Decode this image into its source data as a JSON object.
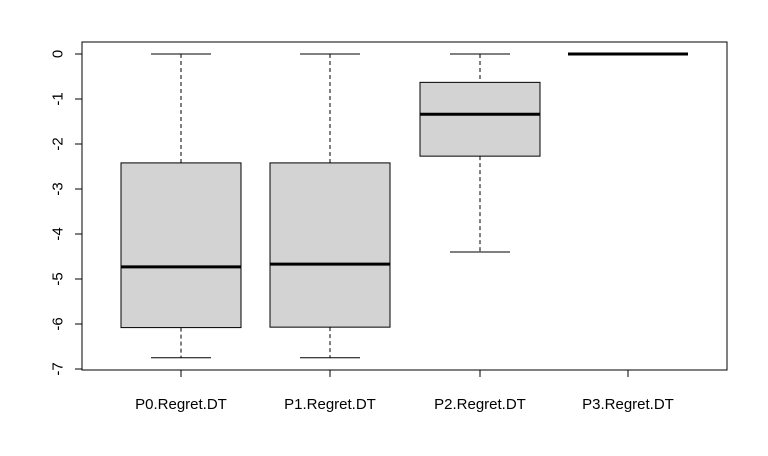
{
  "chart_data": {
    "type": "boxplot",
    "title": "",
    "xlabel": "",
    "ylabel": "",
    "ylim": [
      -7,
      0
    ],
    "yticks": [
      0,
      -1,
      -2,
      -3,
      -4,
      -5,
      -6,
      -7
    ],
    "grid": false,
    "box_fill": "#d3d3d3",
    "line_color": "#000000",
    "categories": [
      "P0.Regret.DT",
      "P1.Regret.DT",
      "P2.Regret.DT",
      "P3.Regret.DT"
    ],
    "boxes": [
      {
        "min": -6.75,
        "q1": -6.08,
        "median": -4.73,
        "q3": -2.42,
        "max": 0
      },
      {
        "min": -6.75,
        "q1": -6.07,
        "median": -4.67,
        "q3": -2.42,
        "max": 0
      },
      {
        "min": -4.4,
        "q1": -2.27,
        "median": -1.34,
        "q3": -0.63,
        "max": 0
      },
      {
        "min": 0,
        "q1": 0,
        "median": 0,
        "q3": 0,
        "max": 0
      }
    ]
  }
}
